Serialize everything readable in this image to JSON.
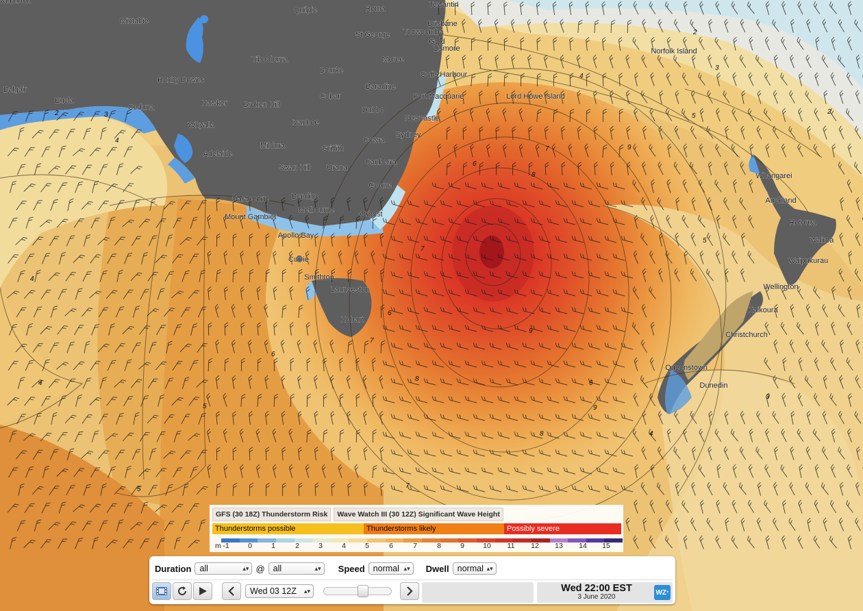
{
  "map": {
    "places": [
      {
        "name": "Warburton"
      },
      {
        "name": "Quilpie"
      },
      {
        "name": "Roma"
      },
      {
        "name": "Tewantin"
      },
      {
        "name": "Brisbane"
      },
      {
        "name": "St George"
      },
      {
        "name": "Toowoomba"
      },
      {
        "name": "Gold"
      },
      {
        "name": "Lismore"
      },
      {
        "name": "Mintabie"
      },
      {
        "name": "Tibooburra"
      },
      {
        "name": "Moree"
      },
      {
        "name": "Norfolk Island"
      },
      {
        "name": "Bourke"
      },
      {
        "name": "Coffs Harbour"
      },
      {
        "name": "Roxby Downs"
      },
      {
        "name": "Baradine"
      },
      {
        "name": "Balgair"
      },
      {
        "name": "Cobar"
      },
      {
        "name": "Port Macquarie"
      },
      {
        "name": "Lord Howe Island"
      },
      {
        "name": "Eucla"
      },
      {
        "name": "Hawker"
      },
      {
        "name": "Broken Hill"
      },
      {
        "name": "Dubbo"
      },
      {
        "name": "Ceduna"
      },
      {
        "name": "Newcastle"
      },
      {
        "name": "Ivanhoe"
      },
      {
        "name": "Whyalla"
      },
      {
        "name": "Sydney"
      },
      {
        "name": "Mildura"
      },
      {
        "name": "Griffith"
      },
      {
        "name": "Cowra"
      },
      {
        "name": "Adelaide"
      },
      {
        "name": "Canberra"
      },
      {
        "name": "Swan Hill"
      },
      {
        "name": "Urana"
      },
      {
        "name": "Whangarei"
      },
      {
        "name": "Cooma"
      },
      {
        "name": "Naracoorte"
      },
      {
        "name": "Bendigo"
      },
      {
        "name": "Auckland"
      },
      {
        "name": "Melbourne"
      },
      {
        "name": "Orbost"
      },
      {
        "name": "Mount Gambier"
      },
      {
        "name": "Rotorua"
      },
      {
        "name": "Apollo Bay"
      },
      {
        "name": "Wairoa"
      },
      {
        "name": "Currie"
      },
      {
        "name": "Waipukurau"
      },
      {
        "name": "Smithton"
      },
      {
        "name": "Wellington"
      },
      {
        "name": "Launceston"
      },
      {
        "name": "Kaikoura"
      },
      {
        "name": "Hobart"
      },
      {
        "name": "Christchurch"
      },
      {
        "name": "Queenstown"
      },
      {
        "name": "Dunedin"
      }
    ],
    "contour_labels": [
      "2",
      "3",
      "4",
      "5",
      "6",
      "7",
      "8",
      "9"
    ]
  },
  "legend": {
    "tab1": "GFS (30 18Z) Thunderstorm Risk",
    "tab2": "Wave Watch III (30 12Z) Significant Wave Height",
    "thunder": [
      {
        "label": "Thunderstorms possible",
        "color": "#f7c21a"
      },
      {
        "label": "Thunderstorms likely",
        "color": "#f07a10"
      },
      {
        "label": "Possibly severe",
        "color": "#e8211c"
      }
    ],
    "unit": "m",
    "ticks": [
      "-1",
      "0",
      "1",
      "2",
      "3",
      "4",
      "5",
      "6",
      "7",
      "8",
      "9",
      "10",
      "11",
      "12",
      "13",
      "14",
      "15"
    ],
    "colors": [
      "#2f74d6",
      "#4b92e0",
      "#7db8ec",
      "#a6dcee",
      "#c8ecf1",
      "#e4f3e0",
      "#f4f0c0",
      "#f6e0a0",
      "#f2c97a",
      "#eeb25a",
      "#e99a40",
      "#e5812f",
      "#e06a2c",
      "#dc5328",
      "#d63d26",
      "#cf2a23",
      "#c02020",
      "#a3161b",
      "#b07ad8",
      "#7b4fc8",
      "#4a2ea8",
      "#2a1a7a"
    ]
  },
  "controls": {
    "duration_label": "Duration",
    "duration_value": "all",
    "at_symbol": "@",
    "at_value": "all",
    "speed_label": "Speed",
    "speed_value": "normal",
    "dwell_label": "Dwell",
    "dwell_value": "normal",
    "date_value": "Wed 03 12Z",
    "time_main": "Wed 22:00 EST",
    "time_sub": "3 June 2020",
    "logo_text": "WZ"
  }
}
